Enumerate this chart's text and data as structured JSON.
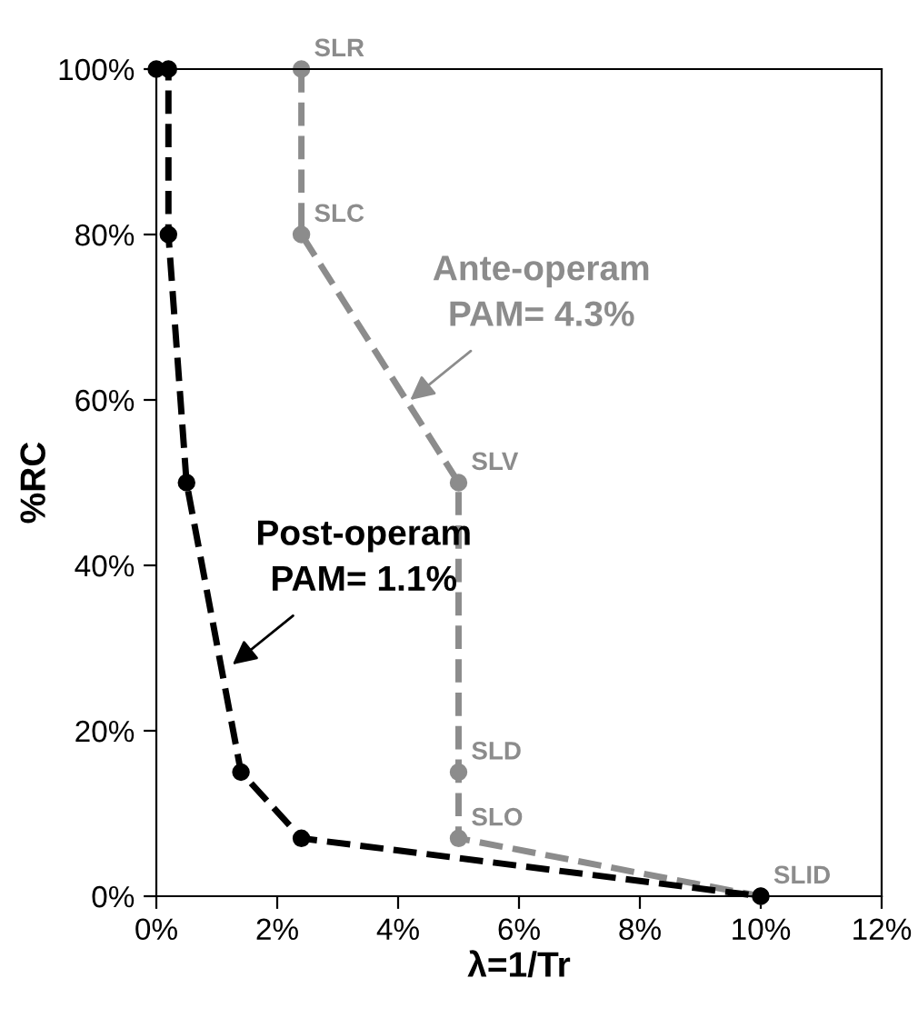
{
  "chart_data": {
    "type": "line",
    "xlabel": "λ=1/Tr",
    "ylabel": "%RC",
    "series": [
      {
        "color": "#8c8c8c",
        "x": [
          2.4,
          2.4,
          5,
          5,
          5,
          10
        ],
        "values": [
          100,
          80,
          50,
          15,
          7,
          0
        ]
      },
      {
        "color": "#000000",
        "x": [
          0,
          0.2,
          0.2,
          0.5,
          1.4,
          2.4,
          10
        ],
        "values": [
          100,
          100,
          80,
          50,
          15,
          7,
          0
        ]
      }
    ],
    "xlim": [
      0,
      12
    ],
    "xticks": [
      {
        "value": 0,
        "label": "0%"
      },
      {
        "value": 2,
        "label": "2%"
      },
      {
        "value": 4,
        "label": "4%"
      },
      {
        "value": 6,
        "label": "6%"
      },
      {
        "value": 8,
        "label": "8%"
      },
      {
        "value": 10,
        "label": "10%"
      },
      {
        "value": 12,
        "label": "12%"
      }
    ],
    "ylim": [
      0,
      100
    ],
    "yticks": [
      {
        "value": 0,
        "label": "0%"
      },
      {
        "value": 20,
        "label": "20%"
      },
      {
        "value": 40,
        "label": "40%"
      },
      {
        "value": 60,
        "label": "60%"
      },
      {
        "value": 80,
        "label": "80%"
      },
      {
        "value": 100,
        "label": "100%"
      }
    ],
    "marker": "circle",
    "line_style": "dashed",
    "grid": false,
    "legend": false,
    "annotations": [
      {
        "text": "SLR",
        "x": 2.4,
        "y": 100
      },
      {
        "text": "SLC",
        "x": 2.4,
        "y": 80
      },
      {
        "text": "SLV",
        "x": 5,
        "y": 50
      },
      {
        "text": "SLD",
        "x": 5,
        "y": 15
      },
      {
        "text": "SLO",
        "x": 5,
        "y": 7
      },
      {
        "text": "SLID",
        "x": 10,
        "y": 0
      },
      {
        "text": "Ante-operam\nPAM= 4.3%",
        "x": 4.2,
        "y": 60
      },
      {
        "text": "Post-operam\nPAM= 1.1%",
        "x": 1.26,
        "y": 28
      }
    ]
  }
}
